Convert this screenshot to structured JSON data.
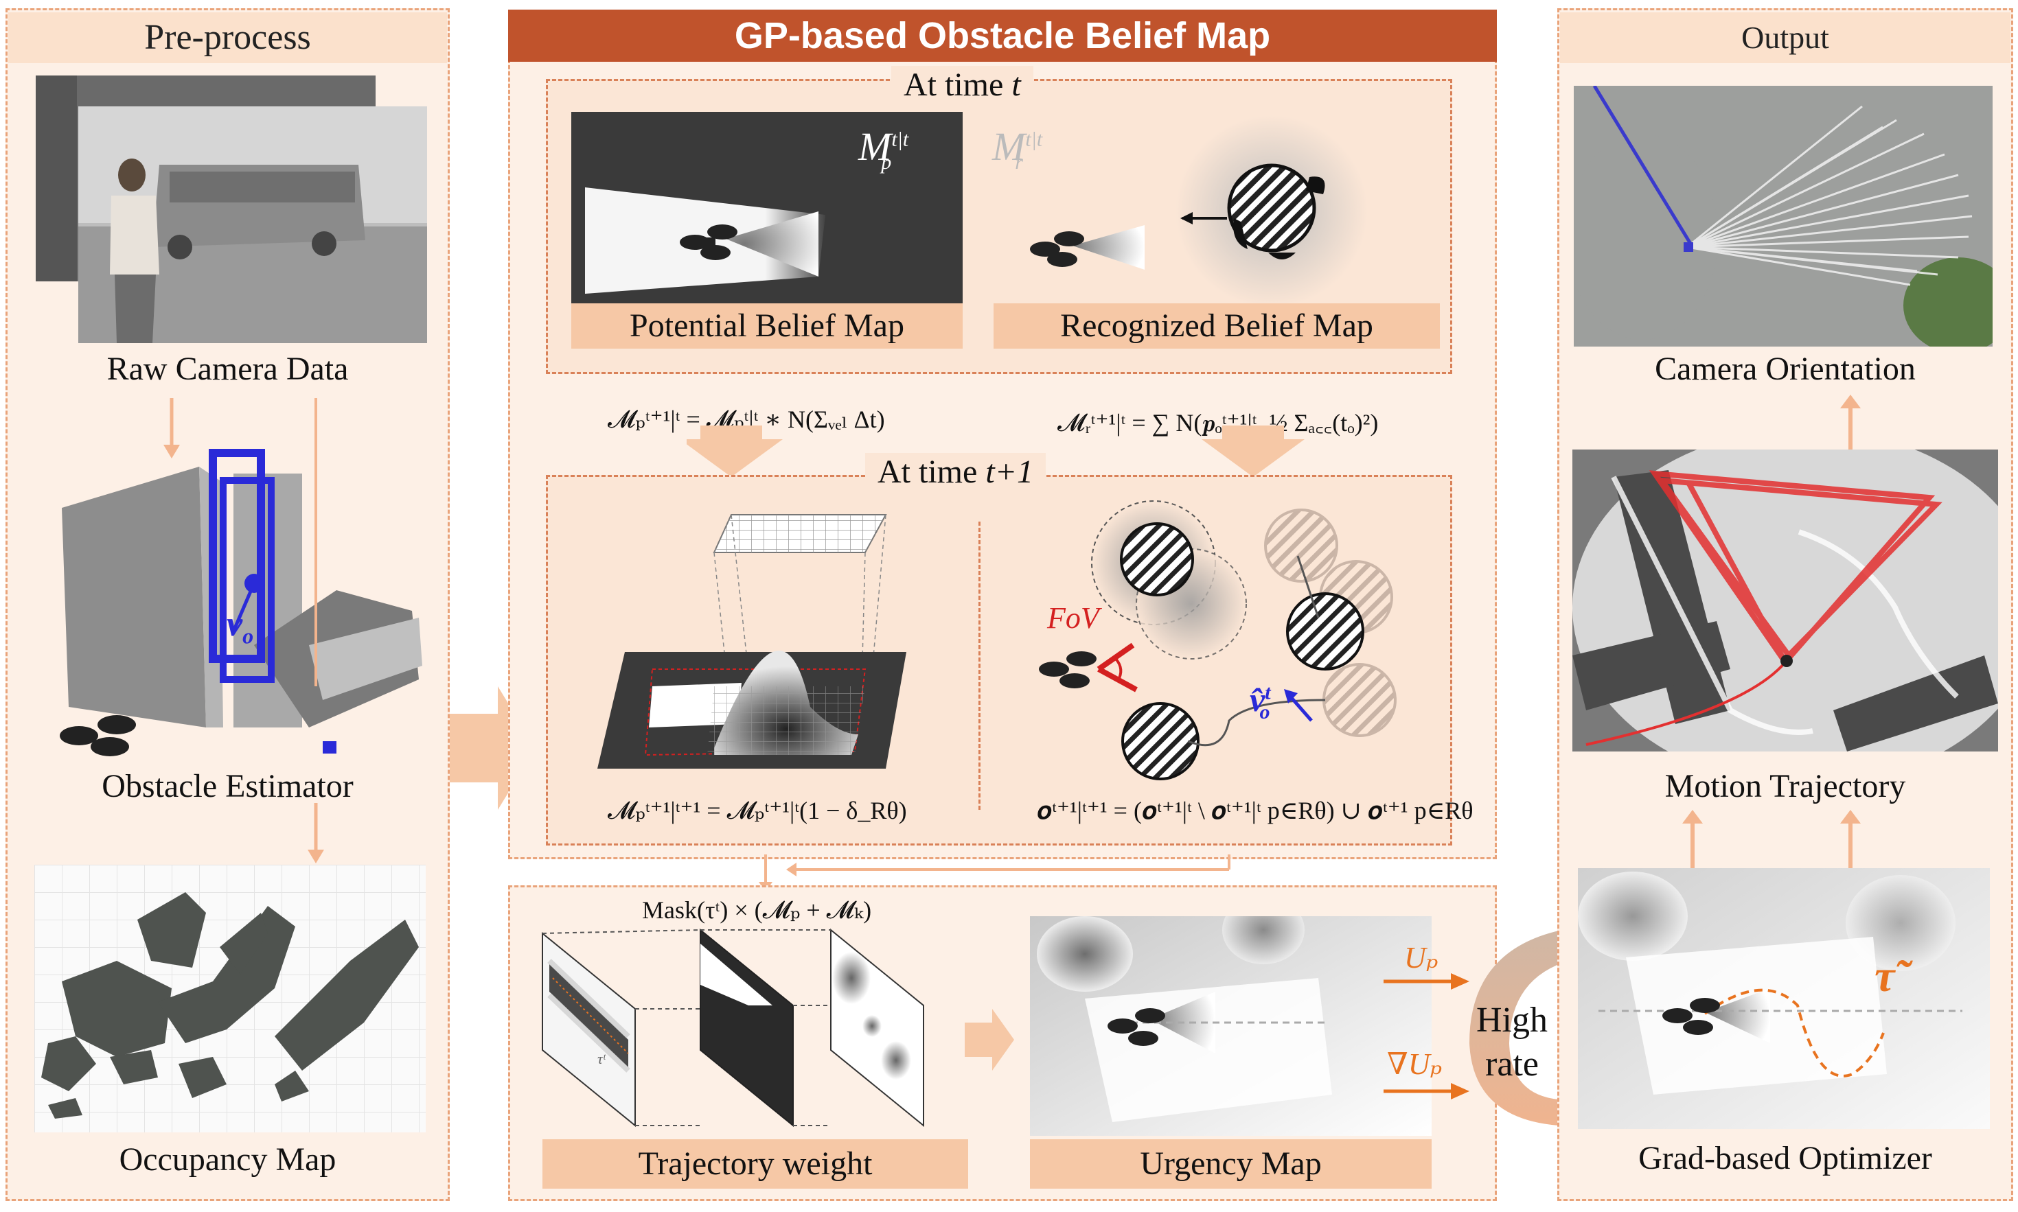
{
  "panels": {
    "preprocess": {
      "title": "Pre-process",
      "items": [
        "Raw Camera Data",
        "Obstacle Estimator",
        "Occupancy Map"
      ],
      "velocity_label": "v",
      "velocity_sub": "o"
    },
    "gp": {
      "title": "GP-based Obstacle Belief Map",
      "time_t": {
        "label_prefix": "At time ",
        "label_var": "t"
      },
      "time_t1": {
        "label_prefix": "At time ",
        "label_var": "t+1"
      },
      "potential_label": "Potential Belief Map",
      "recognized_label": "Recognized Belief Map",
      "mp_symbol": "M",
      "mp_sup": "t|t",
      "mp_sub": "p",
      "mr_symbol": "M",
      "mr_sup": "t|t",
      "mr_sub": "r",
      "eq_potential_prop": "𝓜ₚᵗ⁺¹|ᵗ = 𝓜ₚᵗ|ᵗ ∗ N(Σᵥₑₗ Δt)",
      "eq_recognized_prop": "𝓜ᵣᵗ⁺¹|ᵗ = ∑ N(𝒑ₒᵗ⁺¹|ᵗ, ½ Σₐ꜀꜀(tₒ)²)",
      "eq_potential_update": "𝓜ₚᵗ⁺¹|ᵗ⁺¹ = 𝓜ₚᵗ⁺¹|ᵗ(1 − δ_Rθ)",
      "eq_recognized_update": "𝒐ᵗ⁺¹|ᵗ⁺¹ = (𝒐ᵗ⁺¹|ᵗ \\ 𝒐ᵗ⁺¹|ᵗ p∈Rθ) ∪ 𝒐ᵗ⁺¹ p∈Rθ",
      "fov_label": "FoV",
      "velocity_hat": "v̂",
      "velocity_hat_sub": "o",
      "velocity_hat_sup": "t"
    },
    "bottom": {
      "mask_eq": "Mask(τᵗ) × (𝓜ₚ + 𝓜ₖ)",
      "trajectory_label": "Trajectory weight",
      "urgency_label": "Urgency Map",
      "tau_small": "τᵗ",
      "up_label": "Uₚ",
      "grad_up_label": "∇Uₚ",
      "high_rate": [
        "High",
        "rate"
      ]
    },
    "output": {
      "title": "Output",
      "items": [
        "Camera Orientation",
        "Motion Trajectory",
        "Grad-based Optimizer"
      ],
      "tau_tilde": "τ̃"
    }
  },
  "colors": {
    "panel_bg": "#fdf0e6",
    "panel_border": "#e9a37a",
    "header_dark": "#c0532c",
    "label_bg": "#f6c8a6",
    "arrow": "#f3b48d",
    "accent_orange": "#e8731f",
    "velocity_blue": "#2a2ad8",
    "fov_red": "#d42020",
    "trajectory_red": "#e33030"
  }
}
